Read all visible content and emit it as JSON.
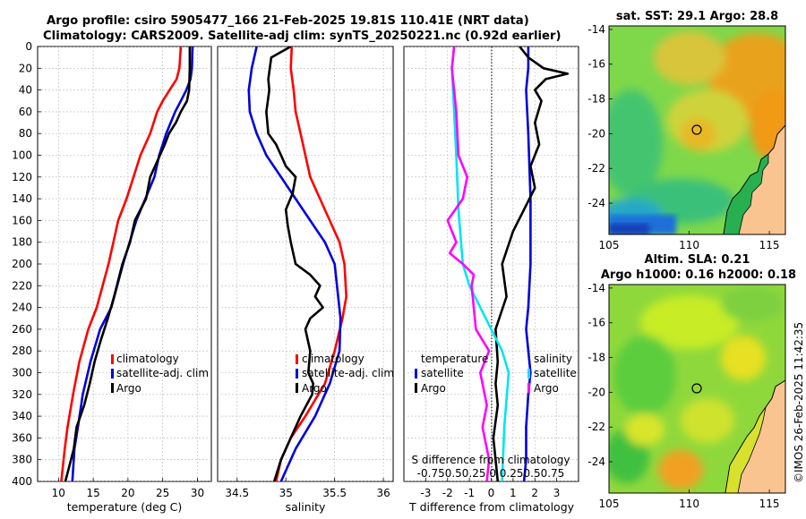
{
  "header": {
    "line1": "Argo profile: csiro 5905477_166 21-Feb-2025 19.81S 110.41E (NRT data)",
    "line2": "Climatology: CARS2009. Satellite-adj clim: synTS_20250221.nc (0.92d earlier)"
  },
  "footer": {
    "credit": "©IMOS 26-Feb-2025 11:42:35"
  },
  "chart_data": [
    {
      "id": "temperature",
      "type": "line",
      "xlabel": "temperature (deg C)",
      "ylabel": "",
      "xlim": [
        7,
        32
      ],
      "ylim": [
        400,
        0
      ],
      "xticks": [
        10,
        15,
        20,
        25,
        30
      ],
      "yticks": [
        0,
        20,
        40,
        60,
        80,
        100,
        120,
        140,
        160,
        180,
        200,
        220,
        240,
        260,
        280,
        300,
        320,
        340,
        360,
        380,
        400
      ],
      "grid": true,
      "legend_position": "lower-right",
      "series": [
        {
          "name": "climatology",
          "color": "#ff0000",
          "x": [
            27.6,
            27.4,
            27.0,
            26.0,
            25.0,
            24.2,
            23.2,
            21.8,
            20.8,
            19.8,
            18.6,
            17.2,
            15.5,
            14.3,
            13.0,
            12.1,
            11.3,
            10.9,
            10.4
          ],
          "y": [
            0,
            20,
            30,
            40,
            50,
            60,
            80,
            100,
            120,
            140,
            160,
            200,
            240,
            260,
            290,
            320,
            350,
            370,
            400
          ]
        },
        {
          "name": "satellite-adj. clim",
          "color": "#0000dd",
          "x": [
            29.3,
            29.2,
            29.0,
            28.4,
            27.6,
            26.8,
            25.5,
            24.5,
            23.8,
            22.5,
            21.2,
            19.3,
            17.6,
            16.0,
            14.6,
            13.5,
            12.8,
            12.3,
            12.0
          ],
          "y": [
            0,
            20,
            30,
            40,
            50,
            60,
            80,
            100,
            120,
            140,
            160,
            200,
            240,
            260,
            290,
            320,
            350,
            370,
            400
          ]
        },
        {
          "name": "Argo",
          "color": "#000000",
          "x": [
            28.9,
            28.9,
            28.8,
            28.5,
            27.6,
            26.9,
            25.9,
            25.3,
            24.6,
            23.2,
            22.6,
            21.0,
            20.3,
            19.2,
            18.0,
            17.1,
            16.1,
            15.2,
            14.5,
            13.7,
            12.6,
            12.2,
            11.6,
            11.0
          ],
          "y": [
            0,
            20,
            40,
            50,
            60,
            70,
            80,
            90,
            100,
            120,
            140,
            160,
            180,
            200,
            230,
            250,
            270,
            290,
            310,
            330,
            350,
            370,
            385,
            400
          ]
        }
      ]
    },
    {
      "id": "salinity",
      "type": "line",
      "xlabel": "salinity",
      "ylabel": "",
      "xlim": [
        34.3,
        36.1
      ],
      "ylim": [
        400,
        0
      ],
      "xticks": [
        34.5,
        35,
        35.5,
        36
      ],
      "xtick_labels": [
        "34.5",
        "35",
        "35.5",
        "36"
      ],
      "grid": true,
      "legend_position": "lower-right",
      "series": [
        {
          "name": "climatology",
          "color": "#ff0000",
          "x": [
            35.06,
            35.05,
            35.08,
            35.1,
            35.15,
            35.25,
            35.35,
            35.45,
            35.55,
            35.6,
            35.62,
            35.58,
            35.5,
            35.4,
            35.2,
            35.05,
            34.95,
            34.9
          ],
          "y": [
            0,
            20,
            40,
            60,
            80,
            120,
            140,
            160,
            180,
            200,
            230,
            250,
            280,
            310,
            340,
            360,
            380,
            400
          ]
        },
        {
          "name": "satellite-adj. clim",
          "color": "#0000dd",
          "x": [
            34.7,
            34.65,
            34.62,
            34.63,
            34.7,
            34.8,
            34.95,
            35.1,
            35.25,
            35.4,
            35.5,
            35.56,
            35.55,
            35.45,
            35.3,
            35.1,
            34.95
          ],
          "y": [
            0,
            20,
            40,
            60,
            80,
            100,
            120,
            140,
            160,
            180,
            200,
            250,
            280,
            310,
            340,
            370,
            400
          ]
        },
        {
          "name": "Argo",
          "color": "#000000",
          "x": [
            35.05,
            34.85,
            34.82,
            34.83,
            34.8,
            34.82,
            34.9,
            34.95,
            35.0,
            35.1,
            35.07,
            35.0,
            35.02,
            35.05,
            35.1,
            35.25,
            35.35,
            35.3,
            35.38,
            35.25,
            35.2,
            35.25,
            35.23,
            35.28,
            35.27,
            35.15,
            35.05,
            34.95,
            34.88
          ],
          "y": [
            0,
            10,
            30,
            40,
            60,
            80,
            90,
            100,
            110,
            120,
            135,
            150,
            165,
            180,
            200,
            210,
            220,
            230,
            240,
            250,
            260,
            280,
            300,
            310,
            320,
            340,
            360,
            380,
            400
          ]
        }
      ]
    },
    {
      "id": "difference",
      "type": "line",
      "xlabel": "T difference from climatology",
      "xlabel_top": "S difference from climatology",
      "xlim": [
        -4,
        4
      ],
      "ylim": [
        400,
        0
      ],
      "xticks": [
        -3,
        -2,
        -1,
        0,
        1,
        2,
        3
      ],
      "s_tick_labels": [
        "-0.75",
        "-0.5",
        "-0.25",
        "0",
        "0.25",
        "0.5",
        "0.75"
      ],
      "s_tick_label_text": "-0.750.50.25 0 0.250.50.75",
      "grid": true,
      "legend_position": "lower-center",
      "legend_temperature_title": "temperature",
      "legend_salinity_title": "salinity",
      "series": [
        {
          "name": "satellite",
          "group": "temperature",
          "color": "#0000dd",
          "x": [
            1.7,
            1.7,
            1.6,
            1.7,
            1.8,
            1.8,
            1.7,
            1.6,
            1.8,
            1.7,
            1.6,
            1.6,
            1.5
          ],
          "y": [
            0,
            20,
            40,
            80,
            140,
            200,
            240,
            260,
            300,
            320,
            350,
            380,
            400
          ]
        },
        {
          "name": "Argo",
          "group": "temperature",
          "color": "#000000",
          "x": [
            1.3,
            1.7,
            2.4,
            3.5,
            2.5,
            2.0,
            2.3,
            2.0,
            2.2,
            1.8,
            2.0,
            1.5,
            1.0,
            0.5,
            0.7,
            0.2,
            0.3,
            0.2,
            0.3,
            0.1,
            0.2,
            0.3
          ],
          "y": [
            0,
            10,
            20,
            25,
            30,
            40,
            50,
            70,
            90,
            110,
            130,
            150,
            170,
            200,
            230,
            260,
            290,
            310,
            330,
            360,
            380,
            400
          ]
        },
        {
          "name": "satellite",
          "group": "salinity",
          "color": "#00e5ee",
          "x": [
            -1.7,
            -1.8,
            -1.7,
            -1.6,
            -1.5,
            -1.3,
            -1.0,
            -0.5,
            0.0,
            0.5,
            0.8,
            0.6,
            0.5
          ],
          "y": [
            0,
            20,
            60,
            100,
            150,
            200,
            220,
            240,
            260,
            280,
            300,
            350,
            400
          ]
        },
        {
          "name": "Argo",
          "group": "salinity",
          "color": "#ff00ff",
          "x": [
            -1.7,
            -1.8,
            -1.6,
            -1.5,
            -1.1,
            -1.3,
            -2.0,
            -1.6,
            -1.9,
            -1.3,
            -0.8,
            -0.9,
            -0.8,
            -0.7,
            -0.1,
            -0.5,
            -0.2,
            -0.4,
            -0.1,
            -0.2
          ],
          "y": [
            0,
            20,
            60,
            100,
            120,
            140,
            160,
            180,
            190,
            200,
            210,
            220,
            240,
            260,
            280,
            300,
            330,
            350,
            380,
            400
          ]
        }
      ]
    },
    {
      "id": "sst_map",
      "type": "heatmap",
      "title": "sat. SST: 29.1 Argo: 28.8",
      "xticks": [
        105,
        110,
        115
      ],
      "yticks": [
        -14,
        -16,
        -18,
        -20,
        -22,
        -24
      ],
      "xlim": [
        105,
        116
      ],
      "ylim": [
        -25.8,
        -13.8
      ],
      "marker": {
        "lon": 110.41,
        "lat": -19.81
      }
    },
    {
      "id": "sla_map",
      "type": "heatmap",
      "title": "Altim. SLA: 0.21",
      "subtitle": "Argo h1000: 0.16 h2000: 0.18",
      "xticks": [
        105,
        110,
        115
      ],
      "yticks": [
        -14,
        -16,
        -18,
        -20,
        -22,
        -24
      ],
      "xlim": [
        105,
        116
      ],
      "ylim": [
        -25.8,
        -13.8
      ],
      "marker": {
        "lon": 110.41,
        "lat": -19.81
      }
    }
  ]
}
